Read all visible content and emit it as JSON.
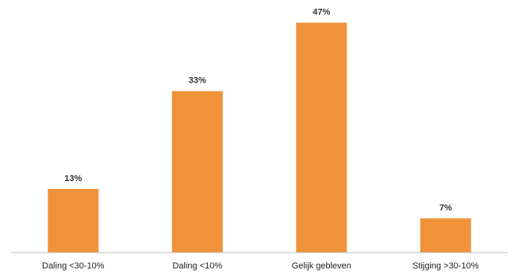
{
  "chart_data": {
    "type": "bar",
    "categories": [
      "Daling <30-10%",
      "Daling <10%",
      "Gelijk gebleven",
      "Stijging >30-10%"
    ],
    "values": [
      13,
      33,
      47,
      7
    ],
    "value_labels": [
      "13%",
      "33%",
      "47%",
      "7%"
    ],
    "ylim": [
      0,
      50
    ],
    "grid": false,
    "legend": "none",
    "bar_color": "#F0923A",
    "axis_color": "#BFBFBF",
    "label_color": "#333333"
  }
}
